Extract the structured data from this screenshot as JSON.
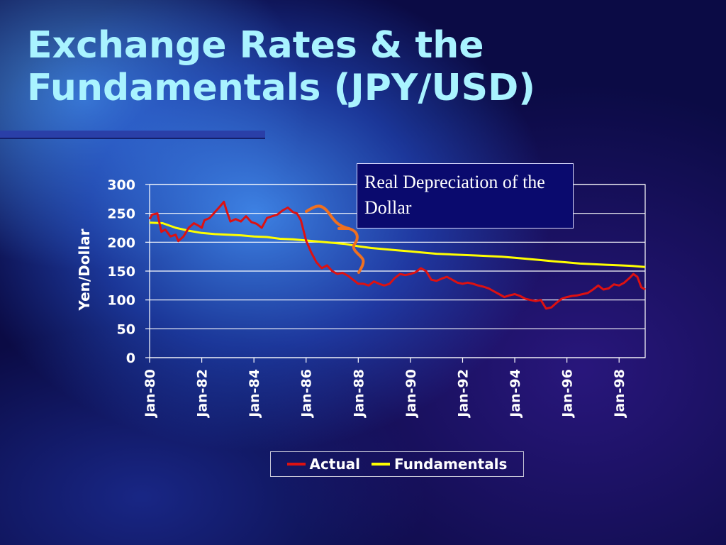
{
  "slide": {
    "title_line1": "Exchange Rates & the",
    "title_line2": "Fundamentals (JPY/USD)",
    "callout": "Real Depreciation of the Dollar"
  },
  "colors": {
    "actual": "#dd1111",
    "fundamentals": "#ffff00",
    "bracket": "#f07020",
    "grid": "#ffffff",
    "text": "#ffffff"
  },
  "chart_data": {
    "type": "line",
    "ylabel": "Yen/Dollar",
    "xlabel": "",
    "ylim": [
      0,
      300
    ],
    "yticks": [
      0,
      50,
      100,
      150,
      200,
      250,
      300
    ],
    "xlim": [
      1980.0,
      1999.0
    ],
    "xticks": [
      {
        "value": 1980,
        "label": "Jan-80"
      },
      {
        "value": 1982,
        "label": "Jan-82"
      },
      {
        "value": 1984,
        "label": "Jan-84"
      },
      {
        "value": 1986,
        "label": "Jan-86"
      },
      {
        "value": 1988,
        "label": "Jan-88"
      },
      {
        "value": 1990,
        "label": "Jan-90"
      },
      {
        "value": 1992,
        "label": "Jan-92"
      },
      {
        "value": 1994,
        "label": "Jan-94"
      },
      {
        "value": 1996,
        "label": "Jan-96"
      },
      {
        "value": 1998,
        "label": "Jan-98"
      }
    ],
    "grid": true,
    "legend_position": "bottom",
    "series": [
      {
        "name": "Actual",
        "x": [
          1980.0,
          1980.1,
          1980.3,
          1980.45,
          1980.6,
          1980.8,
          1981.0,
          1981.1,
          1981.3,
          1981.5,
          1981.7,
          1981.9,
          1982.0,
          1982.1,
          1982.3,
          1982.5,
          1982.7,
          1982.85,
          1982.95,
          1983.1,
          1983.3,
          1983.5,
          1983.7,
          1983.9,
          1984.1,
          1984.3,
          1984.5,
          1984.7,
          1984.9,
          1985.1,
          1985.3,
          1985.5,
          1985.65,
          1985.8,
          1986.0,
          1986.2,
          1986.4,
          1986.6,
          1986.8,
          1987.0,
          1987.2,
          1987.4,
          1987.6,
          1987.8,
          1988.0,
          1988.2,
          1988.4,
          1988.6,
          1988.8,
          1989.0,
          1989.2,
          1989.4,
          1989.6,
          1989.8,
          1990.0,
          1990.2,
          1990.4,
          1990.6,
          1990.8,
          1991.0,
          1991.2,
          1991.4,
          1991.6,
          1991.8,
          1992.0,
          1992.2,
          1992.4,
          1992.6,
          1992.8,
          1993.0,
          1993.2,
          1993.4,
          1993.6,
          1993.8,
          1994.0,
          1994.2,
          1994.4,
          1994.6,
          1994.8,
          1995.0,
          1995.2,
          1995.4,
          1995.6,
          1995.8,
          1996.0,
          1996.2,
          1996.4,
          1996.6,
          1996.8,
          1997.0,
          1997.2,
          1997.4,
          1997.6,
          1997.8,
          1998.0,
          1998.2,
          1998.4,
          1998.55,
          1998.7,
          1998.85,
          1999.0
        ],
        "values": [
          240,
          248,
          250,
          218,
          222,
          210,
          213,
          202,
          210,
          225,
          233,
          228,
          225,
          238,
          242,
          252,
          262,
          270,
          255,
          236,
          240,
          236,
          245,
          235,
          232,
          225,
          242,
          245,
          248,
          255,
          260,
          252,
          250,
          238,
          203,
          182,
          165,
          155,
          160,
          150,
          145,
          147,
          142,
          135,
          128,
          128,
          125,
          132,
          128,
          125,
          128,
          138,
          145,
          143,
          145,
          148,
          155,
          150,
          135,
          133,
          137,
          140,
          135,
          130,
          128,
          130,
          128,
          125,
          123,
          120,
          115,
          110,
          105,
          108,
          110,
          107,
          102,
          100,
          98,
          100,
          85,
          87,
          95,
          102,
          105,
          107,
          108,
          110,
          112,
          118,
          125,
          118,
          120,
          127,
          125,
          130,
          138,
          145,
          140,
          122,
          118
        ]
      },
      {
        "name": "Fundamentals",
        "x": [
          1980.0,
          1980.5,
          1981.0,
          1981.5,
          1982.0,
          1982.5,
          1983.0,
          1983.5,
          1984.0,
          1984.5,
          1985.0,
          1985.5,
          1986.0,
          1986.5,
          1987.0,
          1987.5,
          1988.0,
          1988.5,
          1989.0,
          1989.5,
          1990.0,
          1990.5,
          1991.0,
          1991.5,
          1992.0,
          1992.5,
          1993.0,
          1993.5,
          1994.0,
          1994.5,
          1995.0,
          1995.5,
          1996.0,
          1996.5,
          1997.0,
          1997.5,
          1998.0,
          1998.5,
          1999.0
        ],
        "values": [
          234,
          233,
          225,
          220,
          216,
          214,
          213,
          212,
          210,
          209,
          206,
          205,
          203,
          201,
          199,
          197,
          193,
          190,
          188,
          186,
          184,
          182,
          180,
          179,
          178,
          177,
          176,
          175,
          173,
          171,
          169,
          167,
          165,
          163,
          162,
          161,
          160,
          159,
          157
        ]
      }
    ]
  }
}
